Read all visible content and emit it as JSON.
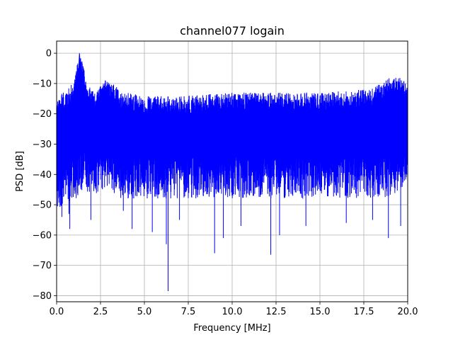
{
  "chart_data": {
    "type": "line",
    "title": "channel077 logain",
    "xlabel": "Frequency [MHz]",
    "ylabel": "PSD [dB]",
    "xlim": [
      0,
      20
    ],
    "ylim": [
      -82,
      4
    ],
    "xticks": [
      0,
      2.5,
      5,
      7.5,
      10,
      12.5,
      15,
      17.5,
      20
    ],
    "xtick_labels": [
      "0.0",
      "2.5",
      "5.0",
      "7.5",
      "10.0",
      "12.5",
      "15.0",
      "17.5",
      "20.0"
    ],
    "yticks": [
      0,
      -10,
      -20,
      -30,
      -40,
      -50,
      -60,
      -70,
      -80
    ],
    "ytick_labels": [
      "0",
      "−10",
      "−20",
      "−30",
      "−40",
      "−50",
      "−60",
      "−70",
      "−80"
    ],
    "grid": true,
    "series": [
      {
        "color": "#0000ff",
        "envelope_x": [
          0,
          0.5,
          1.0,
          1.3,
          1.5,
          1.8,
          2.2,
          2.6,
          2.9,
          3.2,
          3.6,
          4.0,
          5.0,
          7.5,
          10.0,
          12.5,
          15.0,
          17.5,
          18.5,
          19.0,
          19.5,
          20.0
        ],
        "upper": [
          -13,
          -13,
          -9,
          0,
          -3,
          -10,
          -13,
          -10,
          -8,
          -10,
          -12,
          -13,
          -14,
          -14,
          -13,
          -13,
          -13,
          -12,
          -10,
          -8,
          -8,
          -9
        ],
        "lower": [
          -52,
          -50,
          -48,
          -48,
          -44,
          -46,
          -48,
          -45,
          -45,
          -46,
          -48,
          -48,
          -48,
          -48,
          -48,
          -48,
          -48,
          -48,
          -48,
          -47,
          -46,
          -43
        ],
        "dips": [
          {
            "x": 0.3,
            "y": -54
          },
          {
            "x": 0.7,
            "y": -53
          },
          {
            "x": 0.75,
            "y": -58
          },
          {
            "x": 1.95,
            "y": -55
          },
          {
            "x": 3.8,
            "y": -52
          },
          {
            "x": 4.3,
            "y": -58
          },
          {
            "x": 5.45,
            "y": -59
          },
          {
            "x": 6.25,
            "y": -63
          },
          {
            "x": 6.35,
            "y": -78.5
          },
          {
            "x": 7.0,
            "y": -55
          },
          {
            "x": 9.0,
            "y": -66
          },
          {
            "x": 9.5,
            "y": -61
          },
          {
            "x": 10.5,
            "y": -57
          },
          {
            "x": 12.2,
            "y": -66.5
          },
          {
            "x": 12.7,
            "y": -60
          },
          {
            "x": 14.2,
            "y": -57
          },
          {
            "x": 16.5,
            "y": -56
          },
          {
            "x": 18.0,
            "y": -55
          },
          {
            "x": 18.9,
            "y": -61
          },
          {
            "x": 19.6,
            "y": -57
          }
        ]
      }
    ]
  }
}
